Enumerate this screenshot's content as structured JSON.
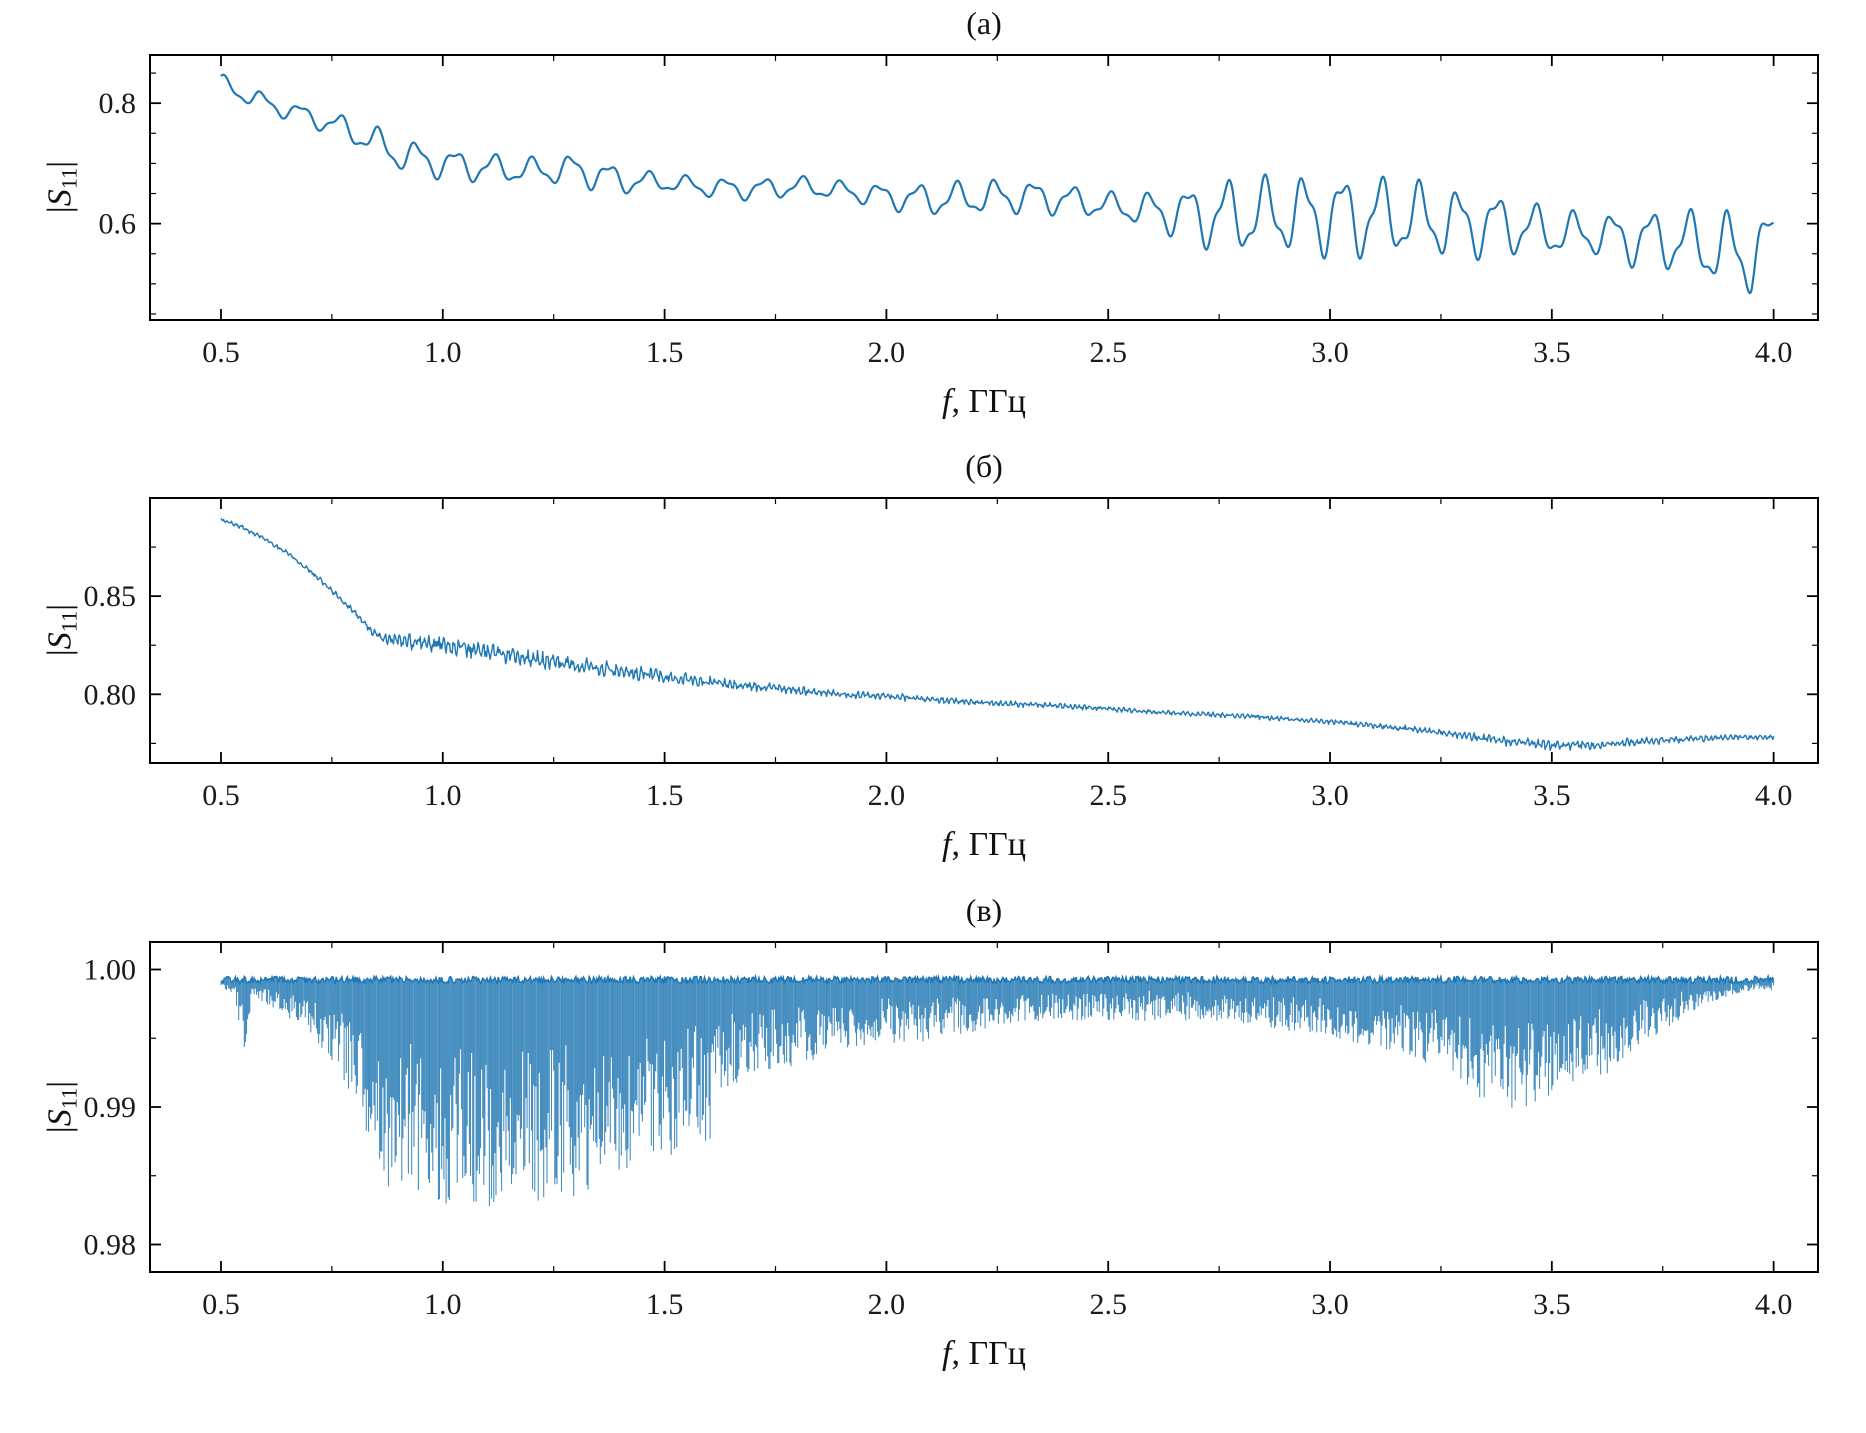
{
  "colors": {
    "line": "#1f77b4",
    "axis": "#000000",
    "background": "#ffffff"
  },
  "labels": {
    "x": {
      "sym": "f",
      "rest": ", ГГц"
    },
    "y": {
      "open": "|",
      "sym": "S",
      "sub": "11",
      "close": "|"
    }
  },
  "chart_data": [
    {
      "type": "line",
      "title": "(а)",
      "xlabel": "f, ГГц",
      "ylabel": "|S11|",
      "xlim": [
        0.34,
        4.1
      ],
      "ylim": [
        0.44,
        0.88
      ],
      "x_ticks": [
        0.5,
        1.0,
        1.5,
        2.0,
        2.5,
        3.0,
        3.5,
        4.0
      ],
      "x_tick_labels": [
        "0.5",
        "1.0",
        "1.5",
        "2.0",
        "2.5",
        "3.0",
        "3.5",
        "4.0"
      ],
      "x_minor_step": 0.25,
      "y_ticks": [
        0.6,
        0.8
      ],
      "y_tick_labels": [
        "0.6",
        "0.8"
      ],
      "y_minor_step": 0.05,
      "grid": false,
      "legend": null,
      "series": [
        {
          "name": "|S11| vs f, oscillating reflection coefficient",
          "synthesis": "baseline_plus_oscillation",
          "x_range": [
            0.5,
            4.0
          ],
          "baseline": [
            [
              0.5,
              0.832
            ],
            [
              0.6,
              0.8
            ],
            [
              0.7,
              0.778
            ],
            [
              0.8,
              0.752
            ],
            [
              0.9,
              0.715
            ],
            [
              1.0,
              0.7
            ],
            [
              1.1,
              0.692
            ],
            [
              1.2,
              0.688
            ],
            [
              1.3,
              0.69
            ],
            [
              1.4,
              0.672
            ],
            [
              1.5,
              0.668
            ],
            [
              1.6,
              0.66
            ],
            [
              1.7,
              0.657
            ],
            [
              1.8,
              0.662
            ],
            [
              1.9,
              0.655
            ],
            [
              2.0,
              0.645
            ],
            [
              2.1,
              0.64
            ],
            [
              2.2,
              0.643
            ],
            [
              2.3,
              0.646
            ],
            [
              2.4,
              0.64
            ],
            [
              2.5,
              0.63
            ],
            [
              2.6,
              0.622
            ],
            [
              2.7,
              0.615
            ],
            [
              2.8,
              0.612
            ],
            [
              2.9,
              0.616
            ],
            [
              3.0,
              0.614
            ],
            [
              3.1,
              0.612
            ],
            [
              3.2,
              0.608
            ],
            [
              3.3,
              0.6
            ],
            [
              3.4,
              0.598
            ],
            [
              3.5,
              0.585
            ],
            [
              3.6,
              0.582
            ],
            [
              3.7,
              0.575
            ],
            [
              3.8,
              0.57
            ],
            [
              3.9,
              0.553
            ],
            [
              3.95,
              0.545
            ],
            [
              4.0,
              0.59
            ]
          ],
          "amplitude": [
            [
              0.5,
              0.013
            ],
            [
              0.7,
              0.013
            ],
            [
              0.85,
              0.022
            ],
            [
              1.0,
              0.022
            ],
            [
              1.2,
              0.018
            ],
            [
              1.35,
              0.022
            ],
            [
              1.5,
              0.012
            ],
            [
              1.7,
              0.015
            ],
            [
              1.9,
              0.013
            ],
            [
              2.1,
              0.022
            ],
            [
              2.3,
              0.024
            ],
            [
              2.5,
              0.018
            ],
            [
              2.6,
              0.025
            ],
            [
              2.75,
              0.05
            ],
            [
              2.9,
              0.052
            ],
            [
              3.05,
              0.058
            ],
            [
              3.2,
              0.05
            ],
            [
              3.35,
              0.045
            ],
            [
              3.5,
              0.032
            ],
            [
              3.6,
              0.028
            ],
            [
              3.7,
              0.04
            ],
            [
              3.8,
              0.042
            ],
            [
              3.9,
              0.055
            ],
            [
              3.95,
              0.05
            ],
            [
              4.0,
              0.02
            ]
          ],
          "components": [
            {
              "cycles_per_GHz": 11.5,
              "amp_scale": 1.0,
              "phase": 1.1
            },
            {
              "cycles_per_GHz": 26.0,
              "amp_scale": 0.32,
              "phase": 0.4
            }
          ]
        }
      ]
    },
    {
      "type": "line",
      "title": "(б)",
      "xlabel": "f, ГГц",
      "ylabel": "|S11|",
      "xlim": [
        0.34,
        4.1
      ],
      "ylim": [
        0.765,
        0.9
      ],
      "x_ticks": [
        0.5,
        1.0,
        1.5,
        2.0,
        2.5,
        3.0,
        3.5,
        4.0
      ],
      "x_tick_labels": [
        "0.5",
        "1.0",
        "1.5",
        "2.0",
        "2.5",
        "3.0",
        "3.5",
        "4.0"
      ],
      "x_minor_step": 0.25,
      "y_ticks": [
        0.8,
        0.85
      ],
      "y_tick_labels": [
        "0.80",
        "0.85"
      ],
      "y_minor_step": 0.025,
      "grid": false,
      "legend": null,
      "series": [
        {
          "name": "|S11| vs f, smooth decaying reflection coefficient with noise band",
          "synthesis": "noisy_line",
          "x_range": [
            0.5,
            4.0
          ],
          "baseline": [
            [
              0.5,
              0.889
            ],
            [
              0.55,
              0.885
            ],
            [
              0.6,
              0.879
            ],
            [
              0.65,
              0.872
            ],
            [
              0.7,
              0.863
            ],
            [
              0.75,
              0.853
            ],
            [
              0.8,
              0.842
            ],
            [
              0.84,
              0.832
            ],
            [
              0.88,
              0.828
            ],
            [
              0.95,
              0.826
            ],
            [
              1.0,
              0.825
            ],
            [
              1.1,
              0.822
            ],
            [
              1.2,
              0.818
            ],
            [
              1.3,
              0.815
            ],
            [
              1.4,
              0.812
            ],
            [
              1.5,
              0.809
            ],
            [
              1.6,
              0.806
            ],
            [
              1.7,
              0.804
            ],
            [
              1.8,
              0.802
            ],
            [
              1.9,
              0.8
            ],
            [
              2.0,
              0.799
            ],
            [
              2.2,
              0.796
            ],
            [
              2.4,
              0.794
            ],
            [
              2.6,
              0.791
            ],
            [
              2.8,
              0.789
            ],
            [
              3.0,
              0.786
            ],
            [
              3.1,
              0.784
            ],
            [
              3.2,
              0.782
            ],
            [
              3.3,
              0.779
            ],
            [
              3.4,
              0.776
            ],
            [
              3.5,
              0.774
            ],
            [
              3.6,
              0.774
            ],
            [
              3.7,
              0.776
            ],
            [
              3.8,
              0.777
            ],
            [
              3.9,
              0.778
            ],
            [
              4.0,
              0.778
            ]
          ],
          "noise_amplitude": [
            [
              0.5,
              0.0012
            ],
            [
              0.8,
              0.0015
            ],
            [
              0.86,
              0.003
            ],
            [
              0.95,
              0.0045
            ],
            [
              1.05,
              0.005
            ],
            [
              1.15,
              0.0045
            ],
            [
              1.3,
              0.004
            ],
            [
              1.5,
              0.0035
            ],
            [
              1.7,
              0.0025
            ],
            [
              2.0,
              0.0018
            ],
            [
              2.5,
              0.0013
            ],
            [
              3.0,
              0.0013
            ],
            [
              3.3,
              0.0018
            ],
            [
              3.45,
              0.0028
            ],
            [
              3.55,
              0.0028
            ],
            [
              3.7,
              0.002
            ],
            [
              4.0,
              0.0012
            ]
          ],
          "texture_cycles_per_GHz": 90
        }
      ]
    },
    {
      "type": "line",
      "title": "(в)",
      "xlabel": "f, ГГц",
      "ylabel": "|S11|",
      "xlim": [
        0.34,
        4.1
      ],
      "ylim": [
        0.978,
        1.002
      ],
      "x_ticks": [
        0.5,
        1.0,
        1.5,
        2.0,
        2.5,
        3.0,
        3.5,
        4.0
      ],
      "x_tick_labels": [
        "0.5",
        "1.0",
        "1.5",
        "2.0",
        "2.5",
        "3.0",
        "3.5",
        "4.0"
      ],
      "x_minor_step": 0.25,
      "y_ticks": [
        0.98,
        0.99,
        1.0
      ],
      "y_tick_labels": [
        "0.98",
        "0.99",
        "1.00"
      ],
      "y_minor_step": 0.005,
      "grid": false,
      "legend": null,
      "series": [
        {
          "name": "|S11| vs f, dense downward spikes from unity",
          "synthesis": "spike_comb",
          "x_range": [
            0.5,
            4.0
          ],
          "top": 0.9995,
          "envelope": [
            [
              0.5,
              0.9988
            ],
            [
              0.53,
              0.998
            ],
            [
              0.55,
              0.9933
            ],
            [
              0.57,
              0.998
            ],
            [
              0.6,
              0.9975
            ],
            [
              0.65,
              0.9965
            ],
            [
              0.7,
              0.9955
            ],
            [
              0.75,
              0.993
            ],
            [
              0.8,
              0.99
            ],
            [
              0.85,
              0.9868
            ],
            [
              0.88,
              0.9838
            ],
            [
              0.92,
              0.9845
            ],
            [
              0.95,
              0.9838
            ],
            [
              1.0,
              0.9828
            ],
            [
              1.05,
              0.9838
            ],
            [
              1.1,
              0.9813
            ],
            [
              1.15,
              0.9843
            ],
            [
              1.2,
              0.9828
            ],
            [
              1.25,
              0.9838
            ],
            [
              1.3,
              0.9833
            ],
            [
              1.35,
              0.9843
            ],
            [
              1.4,
              0.9848
            ],
            [
              1.45,
              0.9872
            ],
            [
              1.5,
              0.9858
            ],
            [
              1.55,
              0.988
            ],
            [
              1.6,
              0.987
            ],
            [
              1.63,
              0.9905
            ],
            [
              1.65,
              0.9915
            ],
            [
              1.7,
              0.9923
            ],
            [
              1.75,
              0.9928
            ],
            [
              1.8,
              0.993
            ],
            [
              1.9,
              0.9942
            ],
            [
              2.0,
              0.9945
            ],
            [
              2.1,
              0.9948
            ],
            [
              2.2,
              0.9955
            ],
            [
              2.3,
              0.9962
            ],
            [
              2.4,
              0.9963
            ],
            [
              2.5,
              0.9963
            ],
            [
              2.6,
              0.9962
            ],
            [
              2.7,
              0.9963
            ],
            [
              2.8,
              0.996
            ],
            [
              2.9,
              0.9955
            ],
            [
              3.0,
              0.9953
            ],
            [
              3.05,
              0.994
            ],
            [
              3.1,
              0.9945
            ],
            [
              3.15,
              0.9938
            ],
            [
              3.2,
              0.9935
            ],
            [
              3.25,
              0.9925
            ],
            [
              3.3,
              0.9912
            ],
            [
              3.35,
              0.9905
            ],
            [
              3.4,
              0.99
            ],
            [
              3.45,
              0.9895
            ],
            [
              3.5,
              0.9905
            ],
            [
              3.55,
              0.9915
            ],
            [
              3.6,
              0.992
            ],
            [
              3.65,
              0.9928
            ],
            [
              3.7,
              0.9945
            ],
            [
              3.75,
              0.9955
            ],
            [
              3.8,
              0.9965
            ],
            [
              3.85,
              0.9975
            ],
            [
              3.9,
              0.998
            ],
            [
              3.95,
              0.9985
            ],
            [
              4.0,
              0.9985
            ]
          ]
        }
      ]
    }
  ]
}
